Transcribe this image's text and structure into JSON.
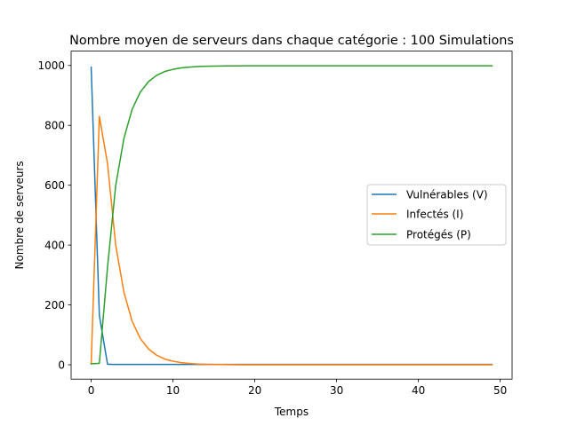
{
  "chart_data": {
    "type": "line",
    "title": "Nombre moyen de serveurs dans chaque catégorie : 100 Simulations",
    "xlabel": "Temps",
    "ylabel": "Nombre de serveurs",
    "xlim": [
      -2.45,
      51.45
    ],
    "ylim": [
      -48,
      1048
    ],
    "xticks": [
      0,
      10,
      20,
      30,
      40,
      50
    ],
    "yticks": [
      0,
      200,
      400,
      600,
      800,
      1000
    ],
    "grid": false,
    "legend_position": "center-right",
    "series": [
      {
        "name": "Vulnérables (V)",
        "color": "#1f77b4",
        "values": [
          994,
          165,
          2,
          1,
          1,
          1,
          1,
          1,
          1,
          1,
          1,
          1,
          1,
          1,
          1,
          1,
          1,
          1,
          1,
          1,
          1,
          1,
          1,
          1,
          1,
          1,
          1,
          1,
          1,
          1,
          1,
          1,
          1,
          1,
          1,
          1,
          1,
          1,
          1,
          1,
          1,
          1,
          1,
          1,
          1,
          1,
          1,
          1,
          1,
          1
        ]
      },
      {
        "name": "Infectés (I)",
        "color": "#ff7f0e",
        "values": [
          3,
          830,
          672,
          400,
          243,
          146,
          88,
          53,
          32,
          19,
          12,
          7,
          4.5,
          2.7,
          1.6,
          1,
          0.6,
          0.4,
          0.2,
          0.1,
          0,
          0,
          0,
          0,
          0,
          0,
          0,
          0,
          0,
          0,
          0,
          0,
          0,
          0,
          0,
          0,
          0,
          0,
          0,
          0,
          0,
          0,
          0,
          0,
          0,
          0,
          0,
          0,
          0,
          0
        ]
      },
      {
        "name": "Protégés (P)",
        "color": "#2ca02c",
        "values": [
          3,
          5,
          326,
          599,
          756,
          853,
          911,
          946,
          967,
          980,
          987,
          992,
          994.5,
          996.3,
          997.4,
          998,
          998.4,
          998.6,
          998.8,
          998.9,
          999,
          999,
          999,
          999,
          999,
          999,
          999,
          999,
          999,
          999,
          999,
          999,
          999,
          999,
          999,
          999,
          999,
          999,
          999,
          999,
          999,
          999,
          999,
          999,
          999,
          999,
          999,
          999,
          999,
          999
        ]
      }
    ]
  }
}
